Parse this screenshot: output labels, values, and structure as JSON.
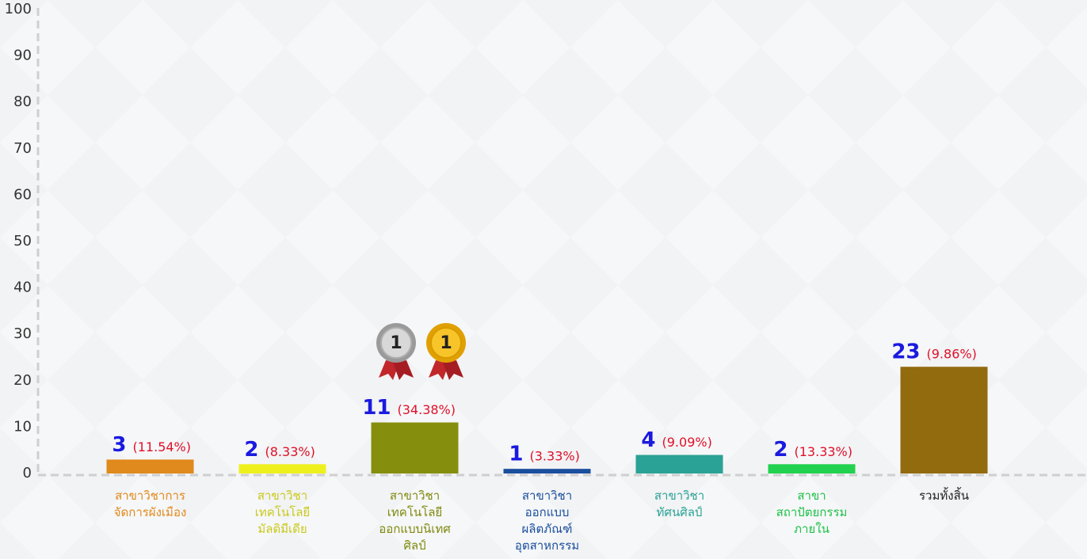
{
  "chart_data": {
    "type": "bar",
    "categories": [
      "สาขาวิชาการ\nจัดการผังเมือง",
      "สาขาวิชา\nเทคโนโลยี\nมัลติมีเดีย",
      "สาขาวิชา\nเทคโนโลยี\nออกแบบนิเทศ\nศิลป์",
      "สาขาวิชา\nออกแบบ\nผลิตภัณฑ์\nอุตสาหกรรม",
      "สาขาวิชา\nทัศนศิลป์",
      "สาขา\nสถาปัตยกรรม\nภายใน",
      "รวมทั้งสิ้น"
    ],
    "values": [
      3,
      2,
      11,
      1,
      4,
      2,
      23
    ],
    "percent_labels": [
      "(11.54%)",
      "(8.33%)",
      "(34.38%)",
      "(3.33%)",
      "(9.09%)",
      "(13.33%)",
      "(9.86%)"
    ],
    "colors": [
      "#e0891c",
      "#eef01e",
      "#858f0d",
      "#1a4e9e",
      "#2aa295",
      "#22d14f",
      "#926b0f"
    ],
    "label_colors": [
      "#e0891c",
      "#c9c91c",
      "#7f890d",
      "#1a4e9e",
      "#2aa295",
      "#1fc24a",
      "#222222"
    ],
    "medals": [
      "1",
      "1"
    ],
    "ylim": [
      0,
      100
    ],
    "yticks": [
      0,
      10,
      20,
      30,
      40,
      50,
      60,
      70,
      80,
      90,
      100
    ],
    "grid": false
  }
}
